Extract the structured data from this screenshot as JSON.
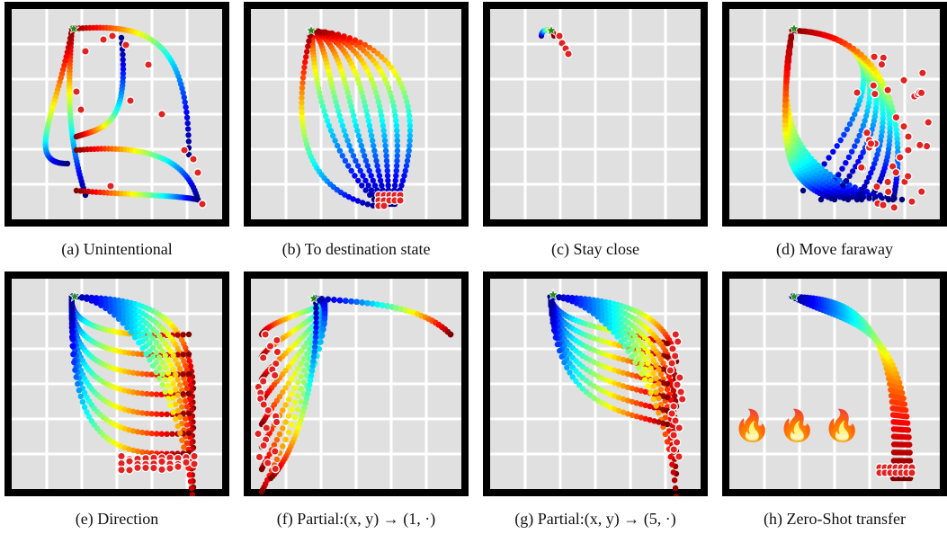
{
  "figure": {
    "panels": [
      {
        "id": "a",
        "caption": "(a) Unintentional"
      },
      {
        "id": "b",
        "caption": "(b) To destination state"
      },
      {
        "id": "c",
        "caption": "(c) Stay close"
      },
      {
        "id": "d",
        "caption": "(d) Move faraway"
      },
      {
        "id": "e",
        "caption": "(e) Direction"
      },
      {
        "id": "f",
        "caption": "(f) Partial:(x, y) → (1, ·)"
      },
      {
        "id": "g",
        "caption": "(g) Partial:(x, y) → (5, ·)"
      },
      {
        "id": "h",
        "caption": "(h) Zero-Shot transfer",
        "hazard_icons": [
          "fire-icon",
          "fire-icon",
          "fire-icon"
        ]
      }
    ],
    "colors": {
      "maze_floor": "#e0e0e0",
      "maze_wall": "#000000",
      "grid_line": "#ffffff",
      "endpoint": "#e32222",
      "start_star": "#1e8c1e",
      "trajectory_colormap": "jet"
    }
  }
}
